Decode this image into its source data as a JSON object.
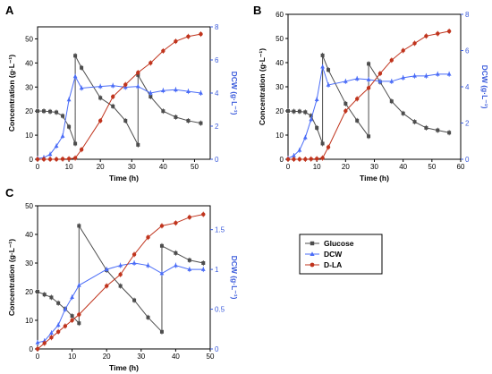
{
  "legend": {
    "entries": [
      {
        "name": "Glucose",
        "color": "#4d4d4d",
        "marker": "square"
      },
      {
        "name": "DCW",
        "color": "#4a6cf7",
        "marker": "triangle"
      },
      {
        "name": "D-LA",
        "color": "#c0341d",
        "marker": "circle"
      }
    ]
  },
  "chart_data": [
    {
      "type": "line",
      "panel": "A",
      "xlabel": "Time (h)",
      "ylabel": "Concentration (g·L⁻¹)",
      "y2label": "DCW (g·L⁻¹)",
      "xlim": [
        0,
        55
      ],
      "ylim": [
        0,
        55
      ],
      "y2lim": [
        0,
        8
      ],
      "xticks": [
        0,
        10,
        20,
        30,
        40,
        50
      ],
      "yticks": [
        0,
        10,
        20,
        30,
        40,
        50
      ],
      "y2ticks": [
        0,
        2,
        4,
        6,
        8
      ],
      "series": [
        {
          "name": "Glucose",
          "axis": "left",
          "color": "#4d4d4d",
          "marker": "square",
          "x": [
            0,
            2,
            4,
            6,
            8,
            10,
            12,
            12,
            14,
            20,
            24,
            28,
            32,
            32,
            36,
            40,
            44,
            48,
            52
          ],
          "y": [
            20,
            20,
            19.8,
            19.5,
            18,
            13.5,
            6.5,
            43,
            38,
            25.5,
            22,
            16,
            6,
            35,
            26,
            20,
            17.5,
            16,
            15
          ]
        },
        {
          "name": "DCW",
          "axis": "right",
          "color": "#4a6cf7",
          "marker": "triangle",
          "x": [
            0,
            2,
            4,
            6,
            8,
            10,
            12,
            14,
            20,
            24,
            28,
            32,
            36,
            40,
            44,
            48,
            52
          ],
          "y": [
            0.05,
            0.1,
            0.3,
            0.8,
            1.4,
            3.6,
            5.0,
            4.3,
            4.4,
            4.45,
            4.35,
            4.4,
            4.0,
            4.15,
            4.2,
            4.1,
            4.0
          ]
        },
        {
          "name": "D-LA",
          "axis": "left",
          "color": "#c0341d",
          "marker": "circle",
          "x": [
            0,
            2,
            4,
            6,
            8,
            10,
            12,
            14,
            20,
            24,
            28,
            32,
            36,
            40,
            44,
            48,
            52
          ],
          "y": [
            0,
            0,
            0,
            0,
            0.1,
            0.2,
            0.5,
            4,
            16,
            26,
            31,
            36,
            40,
            45,
            49,
            51,
            52
          ]
        }
      ]
    },
    {
      "type": "line",
      "panel": "B",
      "xlabel": "Time (h)",
      "ylabel": "Concentration (g·L⁻¹)",
      "y2label": "DCW (g·L⁻¹)",
      "xlim": [
        0,
        60
      ],
      "ylim": [
        0,
        60
      ],
      "y2lim": [
        0,
        8
      ],
      "xticks": [
        0,
        10,
        20,
        30,
        40,
        50,
        60
      ],
      "yticks": [
        0,
        10,
        20,
        30,
        40,
        50,
        60
      ],
      "y2ticks": [
        0,
        2,
        4,
        6,
        8
      ],
      "series": [
        {
          "name": "Glucose",
          "axis": "left",
          "color": "#4d4d4d",
          "marker": "square",
          "x": [
            0,
            2,
            4,
            6,
            8,
            10,
            12,
            12,
            14,
            20,
            24,
            28,
            28,
            32,
            36,
            40,
            44,
            48,
            52,
            56
          ],
          "y": [
            20,
            19.8,
            19.8,
            19.5,
            18,
            13,
            6.5,
            43,
            37,
            23,
            16,
            9.5,
            39.5,
            32,
            24,
            19,
            15.5,
            13,
            12,
            11
          ]
        },
        {
          "name": "DCW",
          "axis": "right",
          "color": "#4a6cf7",
          "marker": "triangle",
          "x": [
            0,
            2,
            4,
            6,
            8,
            10,
            12,
            14,
            20,
            24,
            28,
            32,
            36,
            40,
            44,
            48,
            52,
            56
          ],
          "y": [
            0.05,
            0.2,
            0.5,
            1.2,
            2.2,
            3.3,
            5.1,
            4.1,
            4.3,
            4.45,
            4.4,
            4.3,
            4.3,
            4.5,
            4.6,
            4.6,
            4.7,
            4.7
          ]
        },
        {
          "name": "D-LA",
          "axis": "left",
          "color": "#c0341d",
          "marker": "circle",
          "x": [
            0,
            2,
            4,
            6,
            8,
            10,
            12,
            14,
            20,
            24,
            28,
            32,
            36,
            40,
            44,
            48,
            52,
            56
          ],
          "y": [
            0,
            0,
            0,
            0,
            0.1,
            0.2,
            0.5,
            5,
            20,
            25,
            29.5,
            35.5,
            41,
            45,
            48,
            51,
            52,
            53
          ]
        }
      ]
    },
    {
      "type": "line",
      "panel": "C",
      "xlabel": "Time (h)",
      "ylabel": "Concentration (g·L⁻¹)",
      "y2label": "DCW (g·L⁻¹)",
      "xlim": [
        0,
        50
      ],
      "ylim": [
        0,
        50
      ],
      "y2lim": [
        0,
        1.8
      ],
      "xticks": [
        0,
        10,
        20,
        30,
        40,
        50
      ],
      "yticks": [
        0,
        10,
        20,
        30,
        40,
        50
      ],
      "y2ticks": [
        0.0,
        0.5,
        1.0,
        1.5
      ],
      "series": [
        {
          "name": "Glucose",
          "axis": "left",
          "color": "#4d4d4d",
          "marker": "square",
          "x": [
            0,
            2,
            4,
            6,
            8,
            10,
            12,
            12,
            20,
            24,
            28,
            32,
            36,
            36,
            40,
            44,
            48
          ],
          "y": [
            20,
            19,
            18,
            16,
            14,
            11.5,
            9,
            43,
            27.5,
            22,
            17,
            11,
            6,
            36,
            33.5,
            31,
            30
          ]
        },
        {
          "name": "DCW",
          "axis": "right",
          "color": "#4a6cf7",
          "marker": "triangle",
          "x": [
            0,
            2,
            4,
            6,
            8,
            10,
            12,
            20,
            24,
            28,
            32,
            36,
            40,
            44,
            48
          ],
          "y": [
            0.08,
            0.1,
            0.2,
            0.3,
            0.5,
            0.65,
            0.8,
            1.0,
            1.05,
            1.08,
            1.05,
            0.95,
            1.05,
            1.0,
            1.0
          ]
        },
        {
          "name": "D-LA",
          "axis": "left",
          "color": "#c0341d",
          "marker": "circle",
          "x": [
            0,
            2,
            4,
            6,
            8,
            10,
            12,
            20,
            24,
            28,
            32,
            36,
            40,
            44,
            48
          ],
          "y": [
            0,
            2,
            4,
            6,
            8,
            10,
            12,
            22,
            26,
            33,
            39,
            43,
            44,
            46,
            47
          ]
        }
      ]
    }
  ]
}
